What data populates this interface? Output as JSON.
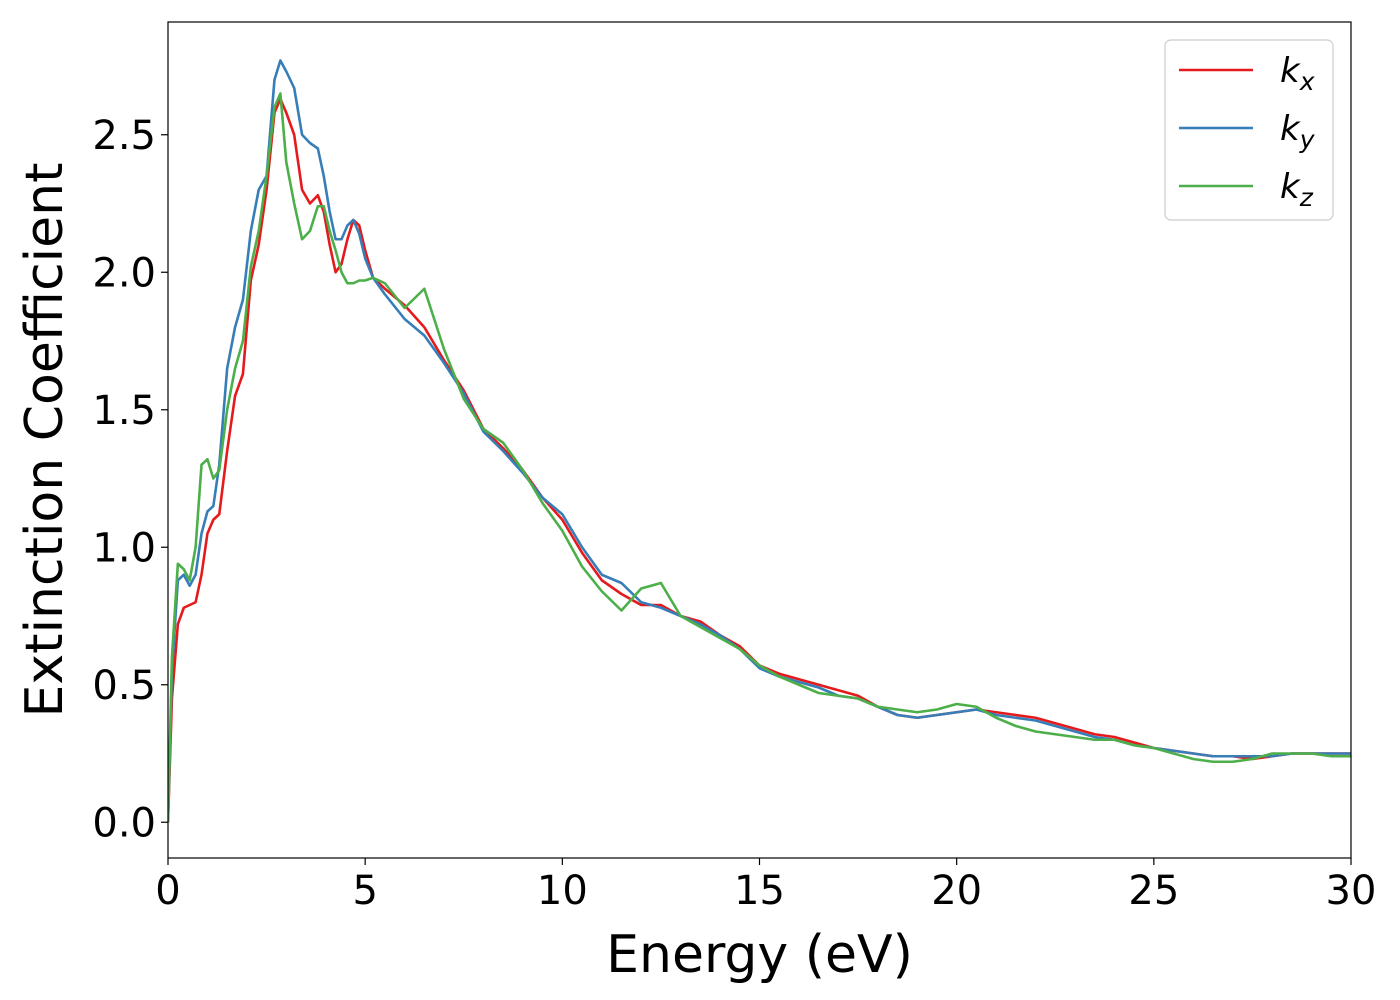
{
  "chart_data": {
    "type": "line",
    "xlabel": "Energy (eV)",
    "ylabel": "Extinction Coefficient",
    "xlim": [
      0,
      30
    ],
    "ylim": [
      -0.13,
      2.91
    ],
    "xticks": [
      0,
      5,
      10,
      15,
      20,
      25,
      30
    ],
    "yticks": [
      0.0,
      0.5,
      1.0,
      1.5,
      2.0,
      2.5
    ],
    "xtick_labels": [
      "0",
      "5",
      "10",
      "15",
      "20",
      "25",
      "30"
    ],
    "ytick_labels": [
      "0.0",
      "0.5",
      "1.0",
      "1.5",
      "2.0",
      "2.5"
    ],
    "grid": false,
    "legend_position": "top-right",
    "series": [
      {
        "name": "k_x",
        "label_base": "k",
        "label_sub": "x",
        "color": "#e41a1c",
        "points": [
          [
            0,
            0
          ],
          [
            0.1,
            0.45
          ],
          [
            0.25,
            0.72
          ],
          [
            0.4,
            0.78
          ],
          [
            0.55,
            0.79
          ],
          [
            0.7,
            0.8
          ],
          [
            0.85,
            0.9
          ],
          [
            1.0,
            1.05
          ],
          [
            1.15,
            1.1
          ],
          [
            1.3,
            1.12
          ],
          [
            1.5,
            1.35
          ],
          [
            1.7,
            1.55
          ],
          [
            1.9,
            1.63
          ],
          [
            2.1,
            1.97
          ],
          [
            2.3,
            2.1
          ],
          [
            2.5,
            2.3
          ],
          [
            2.7,
            2.58
          ],
          [
            2.85,
            2.63
          ],
          [
            3.0,
            2.58
          ],
          [
            3.2,
            2.5
          ],
          [
            3.4,
            2.3
          ],
          [
            3.6,
            2.25
          ],
          [
            3.8,
            2.28
          ],
          [
            3.95,
            2.22
          ],
          [
            4.1,
            2.1
          ],
          [
            4.25,
            2.0
          ],
          [
            4.4,
            2.03
          ],
          [
            4.55,
            2.12
          ],
          [
            4.7,
            2.19
          ],
          [
            4.85,
            2.17
          ],
          [
            5.0,
            2.08
          ],
          [
            5.2,
            1.98
          ],
          [
            5.5,
            1.94
          ],
          [
            6.0,
            1.88
          ],
          [
            6.5,
            1.8
          ],
          [
            7.0,
            1.68
          ],
          [
            7.5,
            1.57
          ],
          [
            8.0,
            1.43
          ],
          [
            8.5,
            1.36
          ],
          [
            9.0,
            1.28
          ],
          [
            9.5,
            1.18
          ],
          [
            10.0,
            1.1
          ],
          [
            10.5,
            0.98
          ],
          [
            11.0,
            0.88
          ],
          [
            11.5,
            0.83
          ],
          [
            12.0,
            0.79
          ],
          [
            12.5,
            0.79
          ],
          [
            13.0,
            0.75
          ],
          [
            13.5,
            0.73
          ],
          [
            14.0,
            0.68
          ],
          [
            14.5,
            0.64
          ],
          [
            15.0,
            0.57
          ],
          [
            15.5,
            0.54
          ],
          [
            16.0,
            0.52
          ],
          [
            16.5,
            0.5
          ],
          [
            17.0,
            0.48
          ],
          [
            17.5,
            0.46
          ],
          [
            18.0,
            0.42
          ],
          [
            18.5,
            0.39
          ],
          [
            19.0,
            0.38
          ],
          [
            19.5,
            0.39
          ],
          [
            20.0,
            0.4
          ],
          [
            20.5,
            0.41
          ],
          [
            21.0,
            0.4
          ],
          [
            21.5,
            0.39
          ],
          [
            22.0,
            0.38
          ],
          [
            22.5,
            0.36
          ],
          [
            23.0,
            0.34
          ],
          [
            23.5,
            0.32
          ],
          [
            24.0,
            0.31
          ],
          [
            24.5,
            0.29
          ],
          [
            25.0,
            0.27
          ],
          [
            25.5,
            0.26
          ],
          [
            26.0,
            0.25
          ],
          [
            26.5,
            0.24
          ],
          [
            27.0,
            0.24
          ],
          [
            27.5,
            0.23
          ],
          [
            28.0,
            0.24
          ],
          [
            28.5,
            0.25
          ],
          [
            29.0,
            0.25
          ],
          [
            29.5,
            0.25
          ],
          [
            30.0,
            0.25
          ]
        ]
      },
      {
        "name": "k_y",
        "label_base": "k",
        "label_sub": "y",
        "color": "#377eb8",
        "points": [
          [
            0,
            0
          ],
          [
            0.1,
            0.55
          ],
          [
            0.25,
            0.88
          ],
          [
            0.4,
            0.9
          ],
          [
            0.55,
            0.86
          ],
          [
            0.7,
            0.9
          ],
          [
            0.85,
            1.05
          ],
          [
            1.0,
            1.13
          ],
          [
            1.15,
            1.15
          ],
          [
            1.3,
            1.3
          ],
          [
            1.5,
            1.65
          ],
          [
            1.7,
            1.8
          ],
          [
            1.9,
            1.9
          ],
          [
            2.1,
            2.15
          ],
          [
            2.3,
            2.3
          ],
          [
            2.5,
            2.35
          ],
          [
            2.7,
            2.7
          ],
          [
            2.85,
            2.77
          ],
          [
            3.0,
            2.73
          ],
          [
            3.2,
            2.67
          ],
          [
            3.4,
            2.5
          ],
          [
            3.6,
            2.47
          ],
          [
            3.8,
            2.45
          ],
          [
            3.95,
            2.35
          ],
          [
            4.1,
            2.22
          ],
          [
            4.25,
            2.12
          ],
          [
            4.4,
            2.12
          ],
          [
            4.55,
            2.17
          ],
          [
            4.7,
            2.19
          ],
          [
            4.85,
            2.14
          ],
          [
            5.0,
            2.05
          ],
          [
            5.2,
            1.98
          ],
          [
            5.5,
            1.92
          ],
          [
            6.0,
            1.83
          ],
          [
            6.5,
            1.77
          ],
          [
            7.0,
            1.67
          ],
          [
            7.5,
            1.56
          ],
          [
            8.0,
            1.42
          ],
          [
            8.5,
            1.35
          ],
          [
            9.0,
            1.27
          ],
          [
            9.5,
            1.18
          ],
          [
            10.0,
            1.12
          ],
          [
            10.5,
            1.0
          ],
          [
            11.0,
            0.9
          ],
          [
            11.5,
            0.87
          ],
          [
            12.0,
            0.8
          ],
          [
            12.5,
            0.78
          ],
          [
            13.0,
            0.75
          ],
          [
            13.5,
            0.72
          ],
          [
            14.0,
            0.68
          ],
          [
            14.5,
            0.63
          ],
          [
            15.0,
            0.56
          ],
          [
            15.5,
            0.53
          ],
          [
            16.0,
            0.51
          ],
          [
            16.5,
            0.49
          ],
          [
            17.0,
            0.46
          ],
          [
            17.5,
            0.45
          ],
          [
            18.0,
            0.42
          ],
          [
            18.5,
            0.39
          ],
          [
            19.0,
            0.38
          ],
          [
            19.5,
            0.39
          ],
          [
            20.0,
            0.4
          ],
          [
            20.5,
            0.41
          ],
          [
            21.0,
            0.39
          ],
          [
            21.5,
            0.38
          ],
          [
            22.0,
            0.37
          ],
          [
            22.5,
            0.35
          ],
          [
            23.0,
            0.33
          ],
          [
            23.5,
            0.31
          ],
          [
            24.0,
            0.3
          ],
          [
            24.5,
            0.28
          ],
          [
            25.0,
            0.27
          ],
          [
            25.5,
            0.26
          ],
          [
            26.0,
            0.25
          ],
          [
            26.5,
            0.24
          ],
          [
            27.0,
            0.24
          ],
          [
            27.5,
            0.24
          ],
          [
            28.0,
            0.24
          ],
          [
            28.5,
            0.25
          ],
          [
            29.0,
            0.25
          ],
          [
            29.5,
            0.25
          ],
          [
            30.0,
            0.25
          ]
        ]
      },
      {
        "name": "k_z",
        "label_base": "k",
        "label_sub": "z",
        "color": "#4daf4a",
        "points": [
          [
            0,
            0
          ],
          [
            0.1,
            0.6
          ],
          [
            0.25,
            0.94
          ],
          [
            0.4,
            0.92
          ],
          [
            0.55,
            0.88
          ],
          [
            0.7,
            1.0
          ],
          [
            0.85,
            1.3
          ],
          [
            1.0,
            1.32
          ],
          [
            1.15,
            1.25
          ],
          [
            1.3,
            1.28
          ],
          [
            1.5,
            1.5
          ],
          [
            1.7,
            1.65
          ],
          [
            1.9,
            1.75
          ],
          [
            2.1,
            2.02
          ],
          [
            2.3,
            2.15
          ],
          [
            2.5,
            2.35
          ],
          [
            2.7,
            2.6
          ],
          [
            2.85,
            2.65
          ],
          [
            3.0,
            2.4
          ],
          [
            3.2,
            2.25
          ],
          [
            3.4,
            2.12
          ],
          [
            3.6,
            2.15
          ],
          [
            3.8,
            2.24
          ],
          [
            3.95,
            2.24
          ],
          [
            4.1,
            2.15
          ],
          [
            4.25,
            2.08
          ],
          [
            4.4,
            2.0
          ],
          [
            4.55,
            1.96
          ],
          [
            4.7,
            1.96
          ],
          [
            4.85,
            1.97
          ],
          [
            5.0,
            1.97
          ],
          [
            5.2,
            1.98
          ],
          [
            5.5,
            1.96
          ],
          [
            6.0,
            1.87
          ],
          [
            6.5,
            1.94
          ],
          [
            7.0,
            1.72
          ],
          [
            7.5,
            1.54
          ],
          [
            8.0,
            1.43
          ],
          [
            8.5,
            1.38
          ],
          [
            9.0,
            1.28
          ],
          [
            9.5,
            1.16
          ],
          [
            10.0,
            1.06
          ],
          [
            10.5,
            0.93
          ],
          [
            11.0,
            0.84
          ],
          [
            11.5,
            0.77
          ],
          [
            12.0,
            0.85
          ],
          [
            12.5,
            0.87
          ],
          [
            13.0,
            0.75
          ],
          [
            13.5,
            0.71
          ],
          [
            14.0,
            0.67
          ],
          [
            14.5,
            0.63
          ],
          [
            15.0,
            0.57
          ],
          [
            15.5,
            0.53
          ],
          [
            16.0,
            0.5
          ],
          [
            16.5,
            0.47
          ],
          [
            17.0,
            0.46
          ],
          [
            17.5,
            0.45
          ],
          [
            18.0,
            0.42
          ],
          [
            18.5,
            0.41
          ],
          [
            19.0,
            0.4
          ],
          [
            19.5,
            0.41
          ],
          [
            20.0,
            0.43
          ],
          [
            20.5,
            0.42
          ],
          [
            21.0,
            0.38
          ],
          [
            21.5,
            0.35
          ],
          [
            22.0,
            0.33
          ],
          [
            22.5,
            0.32
          ],
          [
            23.0,
            0.31
          ],
          [
            23.5,
            0.3
          ],
          [
            24.0,
            0.3
          ],
          [
            24.5,
            0.28
          ],
          [
            25.0,
            0.27
          ],
          [
            25.5,
            0.25
          ],
          [
            26.0,
            0.23
          ],
          [
            26.5,
            0.22
          ],
          [
            27.0,
            0.22
          ],
          [
            27.5,
            0.23
          ],
          [
            28.0,
            0.25
          ],
          [
            28.5,
            0.25
          ],
          [
            29.0,
            0.25
          ],
          [
            29.5,
            0.24
          ],
          [
            30.0,
            0.24
          ]
        ]
      }
    ]
  }
}
